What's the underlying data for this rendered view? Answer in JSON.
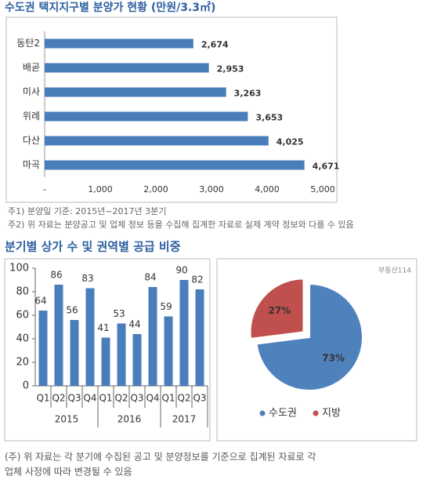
{
  "chart_data": [
    {
      "type": "hbar",
      "title": "수도권 택지지구별 분양가 현황 (만원/3.3㎡)",
      "categories": [
        "동탄2",
        "배곧",
        "미사",
        "위례",
        "다산",
        "마곡"
      ],
      "values": [
        2674,
        2953,
        3263,
        3653,
        4025,
        4671
      ],
      "value_labels": [
        "2,674",
        "2,953",
        "3,263",
        "3,653",
        "4,025",
        "4,671"
      ],
      "color": "#4a7ebb",
      "xlim": [
        0,
        5000
      ],
      "grid": false,
      "xticks": [
        {
          "value": 0,
          "label": "-"
        },
        {
          "value": 1000,
          "label": "1,000"
        },
        {
          "value": 2000,
          "label": "2,000"
        },
        {
          "value": 3000,
          "label": "3,000"
        },
        {
          "value": 4000,
          "label": "4,000"
        },
        {
          "value": 5000,
          "label": "5,000"
        }
      ],
      "notes": [
        "주1) 분양일 기준: 2015년~2017년 3분기",
        "주2) 위 자료는 분양공고 및 업체 정보 등을 수집해 집계한 자료로 실제 계약 정보와 다를 수 있음"
      ]
    },
    {
      "type": "bar",
      "title": "분기별 상가 수 및 권역별 공급 비중",
      "color": "#4a7ebb",
      "groups": [
        {
          "name": "2015",
          "categories": [
            "Q1",
            "Q2",
            "Q3",
            "Q4"
          ],
          "values": [
            64,
            86,
            56,
            83
          ]
        },
        {
          "name": "2016",
          "categories": [
            "Q1",
            "Q2",
            "Q3",
            "Q4"
          ],
          "values": [
            41,
            53,
            44,
            84
          ]
        },
        {
          "name": "2017",
          "categories": [
            "Q1",
            "Q2",
            "Q3"
          ],
          "values": [
            59,
            90,
            82
          ]
        }
      ],
      "ylim": [
        0,
        100
      ],
      "yticks": [
        0,
        20,
        40,
        60,
        80,
        100
      ]
    },
    {
      "type": "pie",
      "brand": "부동산114",
      "labels": [
        "수도권",
        "지방"
      ],
      "values": [
        73,
        27
      ],
      "value_labels": [
        "73%",
        "27%"
      ],
      "colors": [
        "#4f81bd",
        "#c0504d"
      ],
      "explode": [
        false,
        true
      ]
    }
  ],
  "footnote": [
    "(주) 위 자료는 각 분기에 수집된 공고 및 분양정보를 기준으로 집계된 자료로 각",
    "업체 사정에 따라 변경될 수 있음"
  ]
}
